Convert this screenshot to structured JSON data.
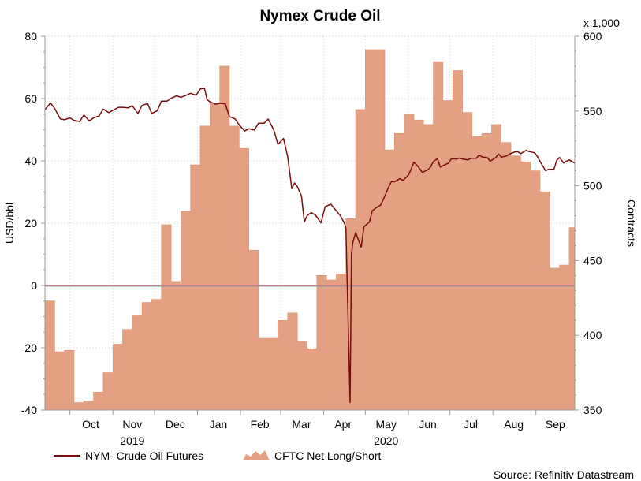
{
  "chart_data": {
    "type": "area+line",
    "title": "Nymex Crude Oil",
    "source": "Source: Refinitiv Datastream",
    "left_axis": {
      "label": "USD/bbl",
      "ylim": [
        -40,
        80
      ],
      "ticks": [
        -40,
        -20,
        0,
        20,
        40,
        60,
        80
      ]
    },
    "right_axis": {
      "label": "Contracts",
      "multiplier_label": "x 1,000",
      "ylim": [
        350,
        600
      ],
      "ticks": [
        350,
        400,
        450,
        500,
        550,
        600
      ]
    },
    "x_axis": {
      "months": [
        "Oct",
        "Nov",
        "Dec",
        "Jan",
        "Feb",
        "Mar",
        "Apr",
        "May",
        "Jun",
        "Jul",
        "Aug",
        "Sep"
      ],
      "years": [
        "2019",
        "2020"
      ],
      "range": [
        "2019-09-13",
        "2020-09-29"
      ]
    },
    "legend": [
      "NYM- Crude Oil Futures",
      "CFTC Net Long/Short"
    ],
    "series": [
      {
        "name": "CFTC Net Long/Short",
        "kind": "step-area",
        "axis": "right",
        "color": "#e3a083",
        "points": [
          [
            "2019-09-13",
            423
          ],
          [
            "2019-09-20",
            389
          ],
          [
            "2019-09-27",
            390
          ],
          [
            "2019-10-04",
            355
          ],
          [
            "2019-10-11",
            356
          ],
          [
            "2019-10-18",
            362
          ],
          [
            "2019-10-25",
            375
          ],
          [
            "2019-11-01",
            394
          ],
          [
            "2019-11-08",
            404
          ],
          [
            "2019-11-15",
            413
          ],
          [
            "2019-11-22",
            422
          ],
          [
            "2019-11-29",
            424
          ],
          [
            "2019-12-06",
            474
          ],
          [
            "2019-12-13",
            436
          ],
          [
            "2019-12-20",
            483
          ],
          [
            "2019-12-27",
            514
          ],
          [
            "2020-01-03",
            540
          ],
          [
            "2020-01-10",
            555
          ],
          [
            "2020-01-17",
            580
          ],
          [
            "2020-01-24",
            540
          ],
          [
            "2020-01-31",
            525
          ],
          [
            "2020-02-07",
            457
          ],
          [
            "2020-02-14",
            398
          ],
          [
            "2020-02-21",
            398
          ],
          [
            "2020-02-28",
            410
          ],
          [
            "2020-03-06",
            415
          ],
          [
            "2020-03-13",
            396
          ],
          [
            "2020-03-20",
            391
          ],
          [
            "2020-03-27",
            440
          ],
          [
            "2020-04-03",
            437
          ],
          [
            "2020-04-10",
            441
          ],
          [
            "2020-04-17",
            478
          ],
          [
            "2020-04-24",
            551
          ],
          [
            "2020-05-01",
            591
          ],
          [
            "2020-05-08",
            591
          ],
          [
            "2020-05-15",
            524
          ],
          [
            "2020-05-22",
            535
          ],
          [
            "2020-05-29",
            548
          ],
          [
            "2020-06-05",
            544
          ],
          [
            "2020-06-12",
            541
          ],
          [
            "2020-06-19",
            583
          ],
          [
            "2020-06-26",
            557
          ],
          [
            "2020-07-03",
            577
          ],
          [
            "2020-07-10",
            549
          ],
          [
            "2020-07-17",
            533
          ],
          [
            "2020-07-24",
            535
          ],
          [
            "2020-07-31",
            541
          ],
          [
            "2020-08-07",
            529
          ],
          [
            "2020-08-14",
            520
          ],
          [
            "2020-08-21",
            516
          ],
          [
            "2020-08-28",
            510
          ],
          [
            "2020-09-04",
            496
          ],
          [
            "2020-09-11",
            445
          ],
          [
            "2020-09-18",
            447
          ],
          [
            "2020-09-25",
            472
          ]
        ],
        "end": "2020-09-29"
      },
      {
        "name": "NYM- Crude Oil Futures",
        "kind": "line",
        "axis": "left",
        "color": "#7a0c0c",
        "points": [
          [
            "2019-09-13",
            56.4
          ],
          [
            "2019-09-17",
            58.6
          ],
          [
            "2019-09-20",
            56.8
          ],
          [
            "2019-09-24",
            53.5
          ],
          [
            "2019-09-27",
            53.2
          ],
          [
            "2019-10-01",
            53.8
          ],
          [
            "2019-10-04",
            53.0
          ],
          [
            "2019-10-08",
            52.6
          ],
          [
            "2019-10-11",
            54.7
          ],
          [
            "2019-10-15",
            52.8
          ],
          [
            "2019-10-18",
            53.8
          ],
          [
            "2019-10-22",
            54.4
          ],
          [
            "2019-10-25",
            56.6
          ],
          [
            "2019-10-29",
            55.5
          ],
          [
            "2019-11-01",
            56.2
          ],
          [
            "2019-11-05",
            57.2
          ],
          [
            "2019-11-08",
            57.2
          ],
          [
            "2019-11-12",
            57.0
          ],
          [
            "2019-11-15",
            57.7
          ],
          [
            "2019-11-19",
            55.2
          ],
          [
            "2019-11-22",
            57.8
          ],
          [
            "2019-11-26",
            58.4
          ],
          [
            "2019-11-29",
            55.2
          ],
          [
            "2019-12-03",
            56.1
          ],
          [
            "2019-12-06",
            59.2
          ],
          [
            "2019-12-10",
            59.2
          ],
          [
            "2019-12-13",
            60.1
          ],
          [
            "2019-12-17",
            60.9
          ],
          [
            "2019-12-20",
            60.4
          ],
          [
            "2019-12-24",
            61.1
          ],
          [
            "2019-12-27",
            61.7
          ],
          [
            "2019-12-31",
            61.1
          ],
          [
            "2020-01-03",
            63.1
          ],
          [
            "2020-01-06",
            63.3
          ],
          [
            "2020-01-08",
            59.6
          ],
          [
            "2020-01-10",
            59.0
          ],
          [
            "2020-01-14",
            58.2
          ],
          [
            "2020-01-17",
            58.5
          ],
          [
            "2020-01-21",
            58.3
          ],
          [
            "2020-01-24",
            54.2
          ],
          [
            "2020-01-28",
            53.5
          ],
          [
            "2020-01-31",
            51.6
          ],
          [
            "2020-02-04",
            49.6
          ],
          [
            "2020-02-07",
            50.3
          ],
          [
            "2020-02-11",
            49.9
          ],
          [
            "2020-02-14",
            52.1
          ],
          [
            "2020-02-18",
            52.1
          ],
          [
            "2020-02-21",
            53.4
          ],
          [
            "2020-02-25",
            49.9
          ],
          [
            "2020-02-28",
            45.3
          ],
          [
            "2020-03-03",
            47.2
          ],
          [
            "2020-03-06",
            41.3
          ],
          [
            "2020-03-09",
            31.1
          ],
          [
            "2020-03-11",
            32.9
          ],
          [
            "2020-03-13",
            31.7
          ],
          [
            "2020-03-16",
            28.7
          ],
          [
            "2020-03-18",
            20.4
          ],
          [
            "2020-03-20",
            22.4
          ],
          [
            "2020-03-23",
            23.4
          ],
          [
            "2020-03-26",
            22.6
          ],
          [
            "2020-03-30",
            20.1
          ],
          [
            "2020-04-02",
            25.3
          ],
          [
            "2020-04-06",
            26.1
          ],
          [
            "2020-04-08",
            25.1
          ],
          [
            "2020-04-13",
            22.4
          ],
          [
            "2020-04-16",
            19.9
          ],
          [
            "2020-04-17",
            18.3
          ],
          [
            "2020-04-20",
            -37.6
          ],
          [
            "2020-04-21",
            10.0
          ],
          [
            "2020-04-22",
            13.8
          ],
          [
            "2020-04-24",
            17.0
          ],
          [
            "2020-04-28",
            12.3
          ],
          [
            "2020-04-30",
            18.8
          ],
          [
            "2020-05-04",
            20.4
          ],
          [
            "2020-05-06",
            23.99
          ],
          [
            "2020-05-08",
            24.7
          ],
          [
            "2020-05-12",
            25.8
          ],
          [
            "2020-05-14",
            27.6
          ],
          [
            "2020-05-18",
            31.8
          ],
          [
            "2020-05-20",
            33.5
          ],
          [
            "2020-05-22",
            33.3
          ],
          [
            "2020-05-26",
            34.3
          ],
          [
            "2020-05-28",
            33.7
          ],
          [
            "2020-06-01",
            35.4
          ],
          [
            "2020-06-03",
            37.3
          ],
          [
            "2020-06-05",
            39.6
          ],
          [
            "2020-06-08",
            38.2
          ],
          [
            "2020-06-11",
            36.3
          ],
          [
            "2020-06-15",
            37.1
          ],
          [
            "2020-06-17",
            37.96
          ],
          [
            "2020-06-19",
            39.8
          ],
          [
            "2020-06-22",
            40.7
          ],
          [
            "2020-06-24",
            38.0
          ],
          [
            "2020-06-26",
            38.5
          ],
          [
            "2020-06-30",
            39.3
          ],
          [
            "2020-07-02",
            40.65
          ],
          [
            "2020-07-06",
            40.6
          ],
          [
            "2020-07-08",
            40.9
          ],
          [
            "2020-07-10",
            40.6
          ],
          [
            "2020-07-14",
            40.3
          ],
          [
            "2020-07-16",
            40.8
          ],
          [
            "2020-07-20",
            40.8
          ],
          [
            "2020-07-22",
            41.9
          ],
          [
            "2020-07-24",
            41.3
          ],
          [
            "2020-07-28",
            41.0
          ],
          [
            "2020-07-30",
            39.9
          ],
          [
            "2020-08-03",
            41.0
          ],
          [
            "2020-08-05",
            42.2
          ],
          [
            "2020-08-07",
            41.2
          ],
          [
            "2020-08-11",
            41.6
          ],
          [
            "2020-08-13",
            42.2
          ],
          [
            "2020-08-17",
            42.9
          ],
          [
            "2020-08-19",
            42.9
          ],
          [
            "2020-08-21",
            42.3
          ],
          [
            "2020-08-25",
            43.4
          ],
          [
            "2020-08-27",
            43.0
          ],
          [
            "2020-08-31",
            42.6
          ],
          [
            "2020-09-02",
            41.5
          ],
          [
            "2020-09-04",
            39.8
          ],
          [
            "2020-09-08",
            36.8
          ],
          [
            "2020-09-10",
            37.3
          ],
          [
            "2020-09-14",
            37.3
          ],
          [
            "2020-09-16",
            40.2
          ],
          [
            "2020-09-18",
            41.1
          ],
          [
            "2020-09-21",
            39.3
          ],
          [
            "2020-09-23",
            39.9
          ],
          [
            "2020-09-25",
            40.3
          ],
          [
            "2020-09-29",
            39.3
          ]
        ]
      }
    ]
  }
}
